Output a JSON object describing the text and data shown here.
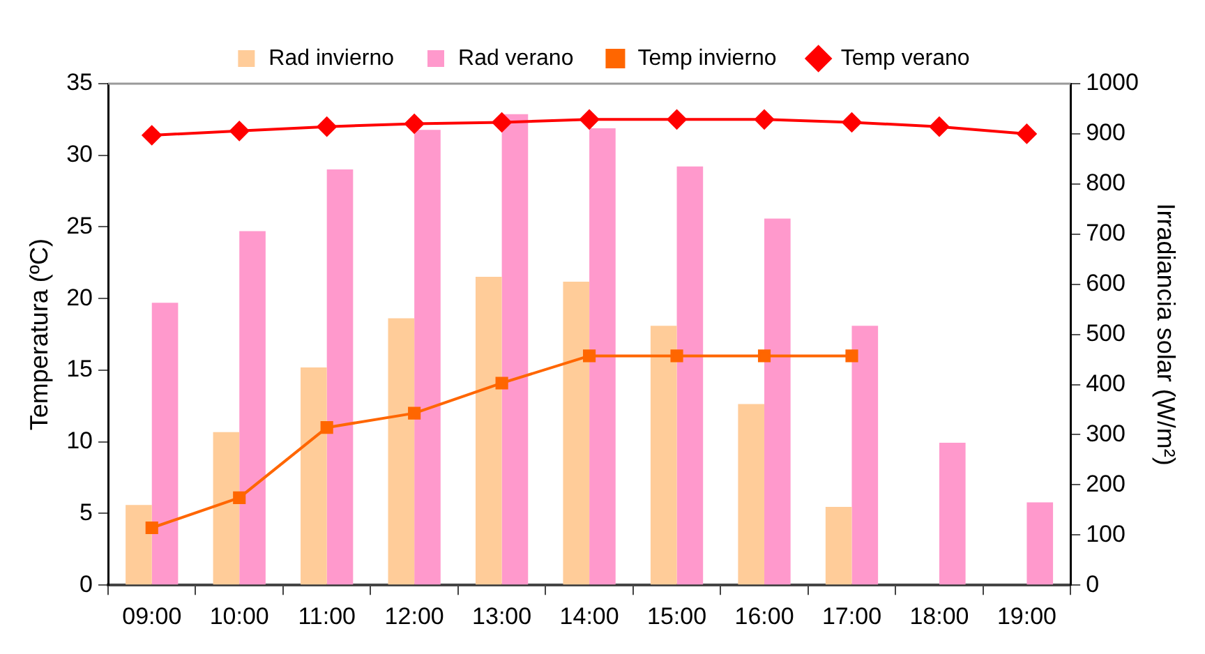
{
  "chart_data": {
    "type": "bar",
    "categories": [
      "09:00",
      "10:00",
      "11:00",
      "12:00",
      "13:00",
      "14:00",
      "15:00",
      "16:00",
      "17:00",
      "18:00",
      "19:00"
    ],
    "ylabel": "Temperatura (ºC)",
    "y2label": "Irradiancia solar (W/m²)",
    "ylim": [
      0,
      35
    ],
    "yticks": [
      0,
      5,
      10,
      15,
      20,
      25,
      30,
      35
    ],
    "y2lim": [
      0,
      1000
    ],
    "y2ticks": [
      0,
      100,
      200,
      300,
      400,
      500,
      600,
      700,
      800,
      900,
      1000
    ],
    "grid": false,
    "legend": "top",
    "series": [
      {
        "name": "Rad invierno",
        "axis": "y2",
        "color": "#ffcc99",
        "values": [
          160,
          305,
          434,
          532,
          615,
          605,
          517,
          361,
          156,
          null,
          null
        ]
      },
      {
        "name": "Rad verano",
        "axis": "y2",
        "color": "#ff99cc",
        "values": [
          563,
          706,
          829,
          908,
          939,
          911,
          835,
          731,
          517,
          284,
          165
        ]
      },
      {
        "name": "Temp invierno",
        "type": "line",
        "marker": "square",
        "color": "#ff6600",
        "values": [
          4.0,
          6.1,
          11.0,
          12.0,
          14.1,
          16.0,
          16.0,
          16.0,
          16.0,
          null,
          null
        ]
      },
      {
        "name": "Temp verano",
        "type": "line",
        "marker": "diamond",
        "color": "#ff0000",
        "values": [
          31.4,
          31.7,
          32.0,
          32.2,
          32.3,
          32.5,
          32.5,
          32.5,
          32.3,
          32.0,
          31.5
        ]
      }
    ]
  }
}
